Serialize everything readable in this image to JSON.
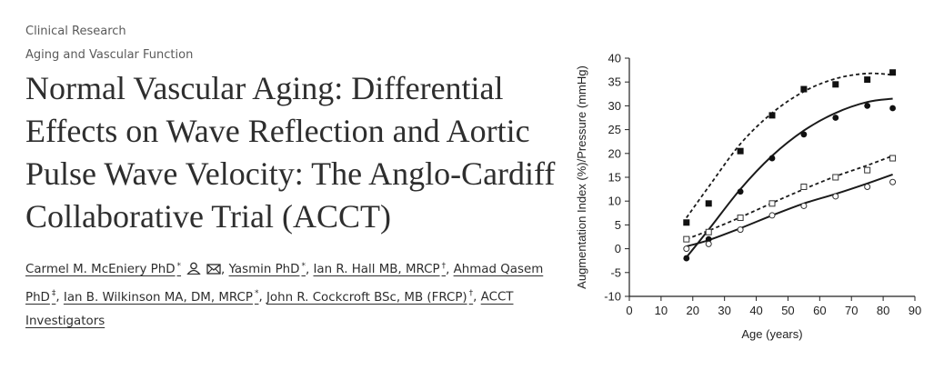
{
  "header": {
    "category": "Clinical Research",
    "subcategory": "Aging and Vascular Function"
  },
  "article": {
    "title": "Normal Vascular Aging: Differential Effects on Wave Reflection and Aortic Pulse Wave Velocity: The Anglo-Cardiff Collaborative Trial (ACCT)",
    "authors": [
      {
        "name": "Carmel M. McEniery PhD",
        "mark": "*"
      },
      {
        "name": "Yasmin PhD",
        "mark": "*"
      },
      {
        "name": "Ian R. Hall MB, MRCP",
        "mark": "†"
      },
      {
        "name": "Ahmad Qasem PhD",
        "mark": "‡"
      },
      {
        "name": "Ian B. Wilkinson MA, DM, MRCP",
        "mark": "*"
      },
      {
        "name": "John R. Cockcroft BSc, MB (FRCP)",
        "mark": "†"
      },
      {
        "name": "ACCT Investigators",
        "mark": ""
      }
    ],
    "author_icons": [
      "person-icon",
      "envelope-icon"
    ]
  },
  "chart_data": {
    "type": "scatter",
    "xlabel": "Age  (years)",
    "ylabel": "Augmentation Index (%)/Pressure (mmHg)",
    "xlim": [
      0,
      90
    ],
    "ylim": [
      -10,
      40
    ],
    "xticks": [
      0,
      10,
      20,
      30,
      40,
      50,
      60,
      70,
      80,
      90
    ],
    "yticks": [
      -10,
      -5,
      0,
      5,
      10,
      15,
      20,
      25,
      30,
      35,
      40
    ],
    "grid": false,
    "x": [
      18,
      25,
      35,
      45,
      55,
      65,
      75,
      83
    ],
    "series": [
      {
        "marker": "filled-square",
        "fit": "dashed",
        "values": [
          5.5,
          9.5,
          20.5,
          28,
          33.5,
          34.5,
          35.5,
          37
        ],
        "fit_values": [
          6.5,
          13,
          22,
          28.5,
          33,
          35.7,
          36.8,
          36.5
        ]
      },
      {
        "marker": "filled-circle",
        "fit": "solid",
        "values": [
          -2,
          2,
          12,
          19,
          24,
          27.5,
          30,
          29.5
        ],
        "fit_values": [
          -1.8,
          4,
          12.5,
          19.5,
          24.8,
          28.5,
          30.8,
          31.5
        ]
      },
      {
        "marker": "open-square",
        "fit": "dashed",
        "values": [
          2,
          3.5,
          6.5,
          9.5,
          13,
          15,
          16.5,
          19
        ],
        "fit_values": [
          2,
          3.8,
          6.6,
          9.6,
          12.5,
          15.2,
          17.5,
          19.5
        ]
      },
      {
        "marker": "open-circle",
        "fit": "solid",
        "values": [
          0,
          1,
          4,
          7,
          9,
          11,
          13,
          14
        ],
        "fit_values": [
          0.5,
          1.8,
          4.3,
          7,
          9.5,
          11.5,
          13.7,
          15.6
        ]
      }
    ]
  }
}
